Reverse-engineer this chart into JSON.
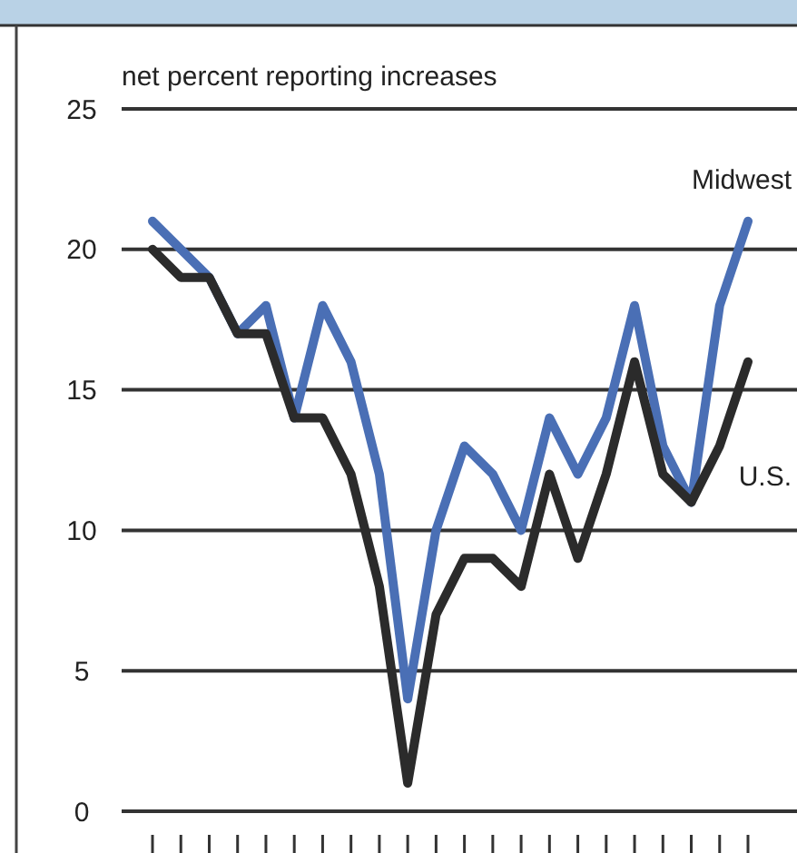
{
  "chart_data": {
    "type": "line",
    "ylabel": "net percent reporting increases",
    "categories": [
      null,
      null,
      null,
      null,
      null,
      null,
      null,
      null,
      null,
      null,
      null,
      null,
      null,
      null,
      null,
      null,
      null,
      null,
      null,
      null,
      null,
      null
    ],
    "series": [
      {
        "name": "Midwest",
        "color": "#4a6fb5",
        "values": [
          21,
          20,
          19,
          17,
          18,
          14,
          18,
          16,
          12,
          4,
          10,
          13,
          12,
          10,
          14,
          12,
          14,
          18,
          13,
          11,
          18,
          21
        ]
      },
      {
        "name": "U.S.",
        "color": "#2b2b2b",
        "values": [
          20,
          19,
          19,
          17,
          17,
          14,
          14,
          12,
          8,
          1,
          7,
          9,
          9,
          8,
          12,
          9,
          12,
          16,
          12,
          11,
          13,
          16
        ]
      }
    ],
    "ylim": [
      0,
      25
    ],
    "yticks": [
      0,
      5,
      10,
      15,
      20,
      25
    ],
    "grid": "y",
    "marker": "none",
    "line_style": "solid"
  }
}
